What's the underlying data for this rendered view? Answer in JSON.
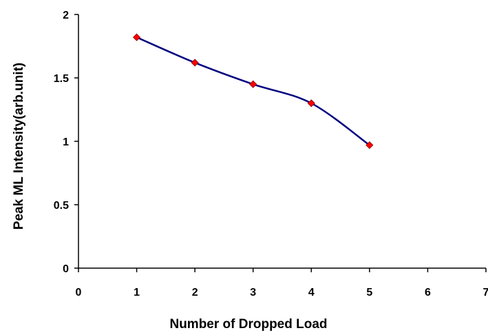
{
  "chart_data": {
    "type": "line",
    "title": "",
    "xlabel": "Number of Dropped Load",
    "ylabel": "Peak ML Intensity(arb.unit)",
    "xlim": [
      0,
      7
    ],
    "ylim": [
      0,
      2
    ],
    "xticks": [
      0,
      1,
      2,
      3,
      4,
      5,
      6,
      7
    ],
    "yticks": [
      0,
      0.5,
      1,
      1.5,
      2
    ],
    "xtick_labels": [
      "0",
      "1",
      "2",
      "3",
      "4",
      "5",
      "6",
      "7"
    ],
    "ytick_labels": [
      "0",
      "0.5",
      "1",
      "1.5",
      "2"
    ],
    "grid": false,
    "legend": "none",
    "smooth": true,
    "series": [
      {
        "x": [
          1,
          2,
          3,
          4,
          5
        ],
        "y": [
          1.82,
          1.62,
          1.45,
          1.3,
          0.97
        ],
        "line_color": "#000080",
        "marker": "diamond",
        "marker_color": "#ff0000"
      }
    ]
  }
}
